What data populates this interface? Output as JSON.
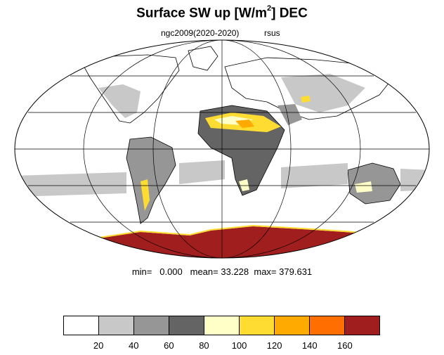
{
  "title": {
    "main": "Surface SW up [W/m",
    "sup": "2",
    "tail": "]  DEC"
  },
  "subtitle": {
    "left": "ngc2009(2020-2020)",
    "right": "rsus"
  },
  "stats": {
    "min_label": "min=",
    "min_value": "0.000",
    "mean_label": "mean=",
    "mean_value": "33.228",
    "max_label": "max=",
    "max_value": "379.631"
  },
  "colorbar": {
    "colors": [
      "#ffffff",
      "#c8c8c8",
      "#969696",
      "#646464",
      "#ffffc8",
      "#ffdc32",
      "#ffaa00",
      "#ff6e00",
      "#a01e1e"
    ],
    "ticks": [
      "20",
      "40",
      "60",
      "80",
      "100",
      "120",
      "140",
      "160"
    ]
  },
  "map": {
    "projection": "Mollweide",
    "ocean_color": "#ffffff",
    "land_base_color": "#ffffff",
    "coastline_color": "#000000",
    "graticule_color": "#000000"
  }
}
